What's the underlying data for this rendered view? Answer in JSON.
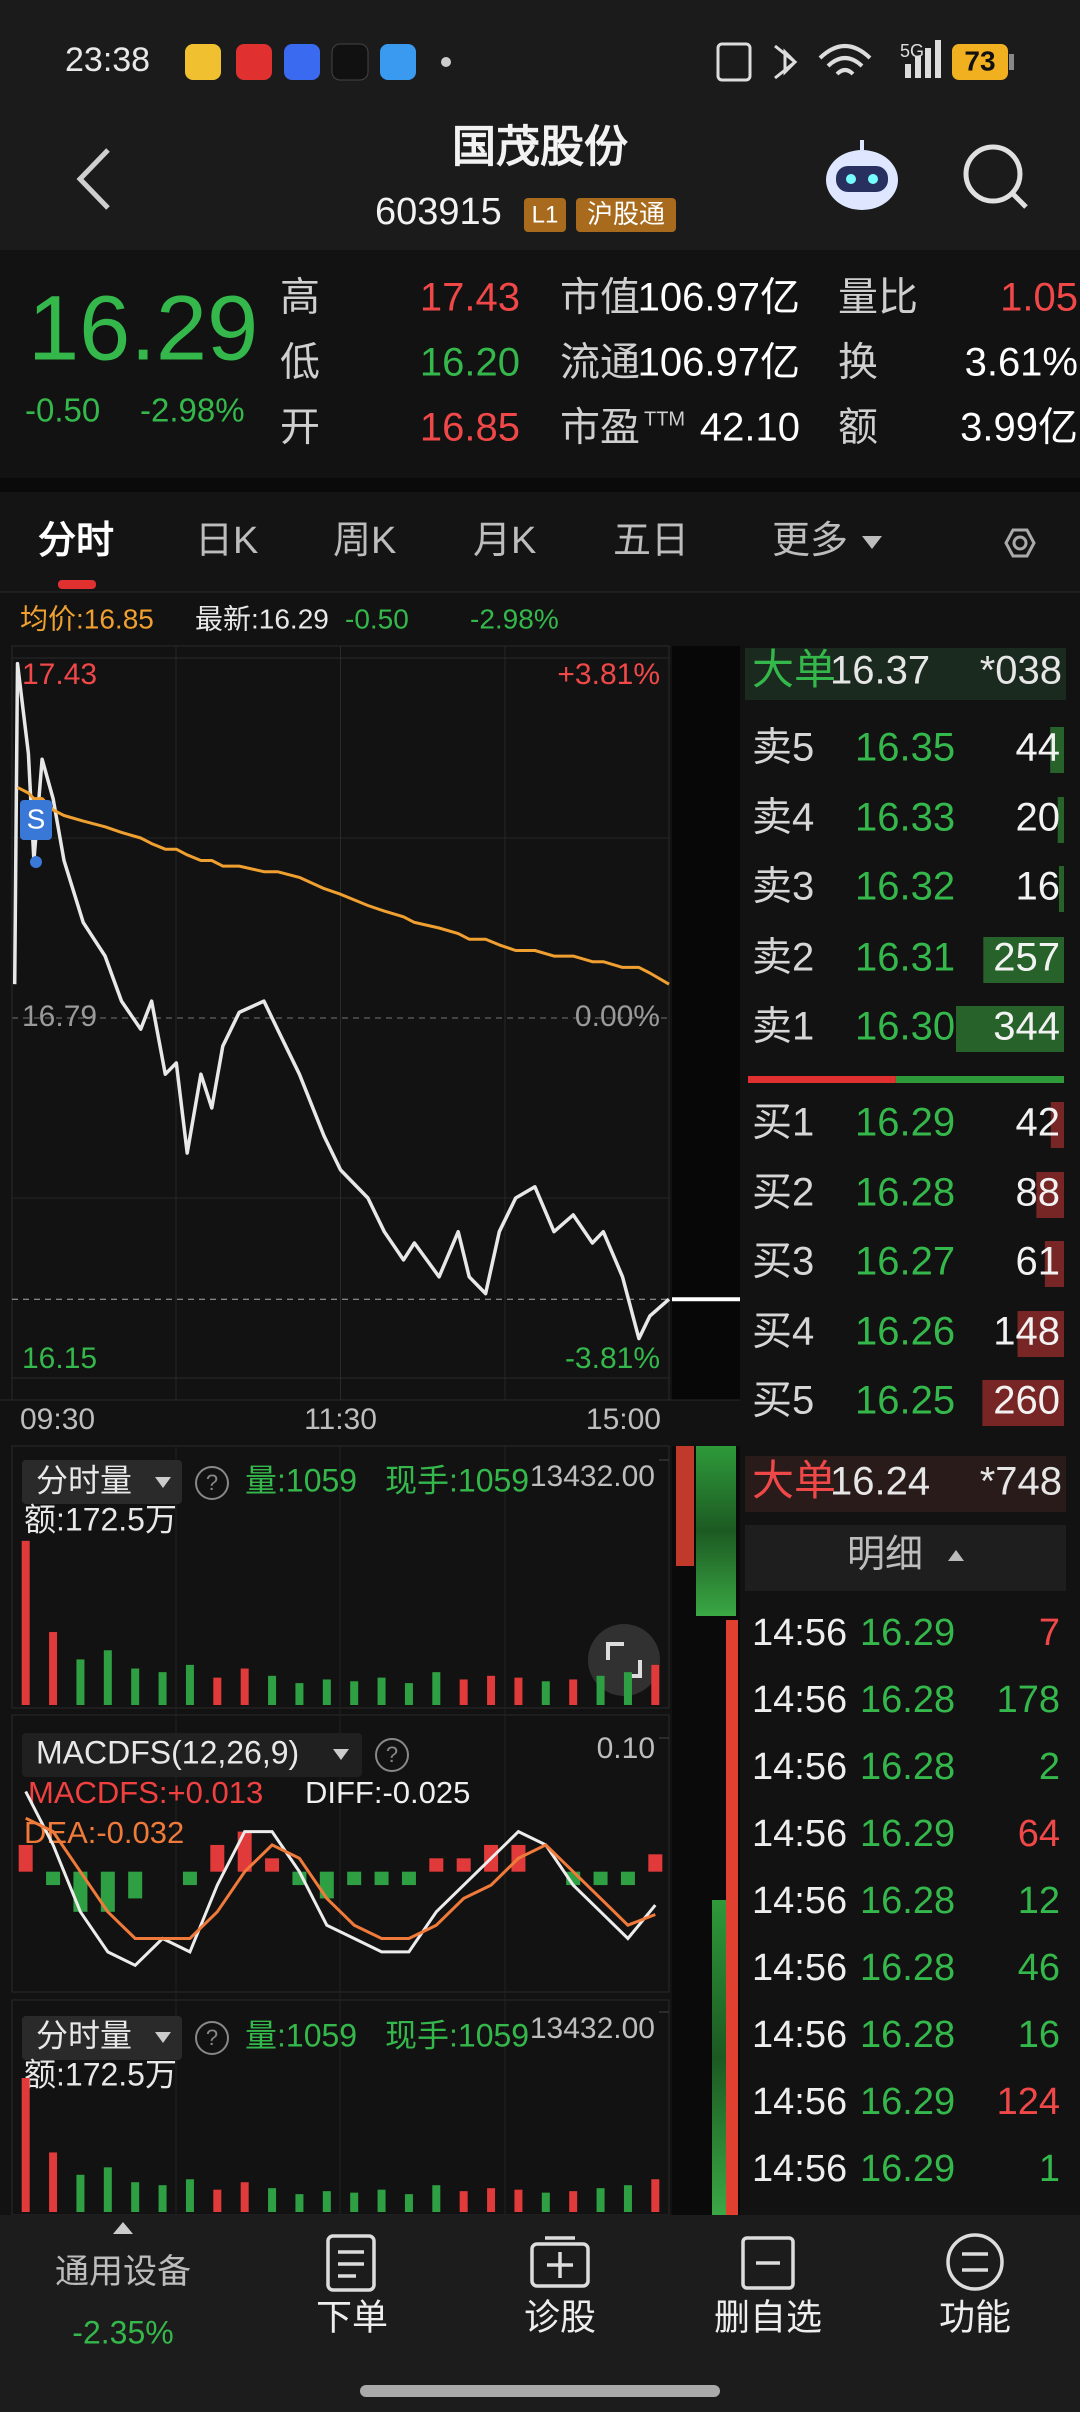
{
  "status_bar": {
    "time": "23:38",
    "network": "5G",
    "battery": "73"
  },
  "header": {
    "title": "国茂股份",
    "code": "603915",
    "badges": [
      "L1",
      "沪股通"
    ]
  },
  "quote": {
    "price": "16.29",
    "change": "-0.50",
    "change_pct": "-2.98%",
    "rows": [
      [
        {
          "label": "高",
          "value": "17.43",
          "color": "#f04848"
        },
        {
          "label": "市值",
          "value": "106.97亿",
          "color": "#ffffff"
        },
        {
          "label": "量比",
          "value": "1.05",
          "color": "#f04848"
        }
      ],
      [
        {
          "label": "低",
          "value": "16.20",
          "color": "#35b84b"
        },
        {
          "label": "流通",
          "value": "106.97亿",
          "color": "#ffffff"
        },
        {
          "label": "换",
          "value": "3.61%",
          "color": "#ffffff"
        }
      ],
      [
        {
          "label": "开",
          "value": "16.85",
          "color": "#f04848"
        },
        {
          "label": "市盈",
          "label_sup": "TTM",
          "value": "42.10",
          "color": "#ffffff"
        },
        {
          "label": "额",
          "value": "3.99亿",
          "color": "#ffffff"
        }
      ]
    ]
  },
  "tabs": [
    "分时",
    "日K",
    "周K",
    "月K",
    "五日",
    "更多"
  ],
  "chart_info": {
    "avg": "均价:16.85",
    "latest": "最新:16.29",
    "change": "-0.50",
    "change_pct": "-2.98%",
    "marker": "S"
  },
  "chart_data": [
    {
      "type": "line",
      "x": [
        1,
        2,
        6,
        8,
        11,
        15,
        19,
        26,
        34,
        40,
        47,
        51,
        56,
        60,
        64,
        69,
        73,
        77,
        83,
        92,
        97,
        105,
        114,
        120,
        130,
        136,
        143,
        147,
        156,
        163,
        167,
        173,
        178,
        184,
        191,
        198,
        205,
        212,
        216,
        223,
        229,
        233,
        240
      ],
      "series": [
        {
          "color": "#e8e8e8",
          "values": [
            16.85,
            17.42,
            17.26,
            17.07,
            17.25,
            17.18,
            17.07,
            16.96,
            16.9,
            16.82,
            16.77,
            16.82,
            16.69,
            16.71,
            16.55,
            16.69,
            16.63,
            16.74,
            16.8,
            16.82,
            16.77,
            16.69,
            16.58,
            16.52,
            16.47,
            16.41,
            16.36,
            16.39,
            16.33,
            16.41,
            16.33,
            16.3,
            16.41,
            16.47,
            16.49,
            16.41,
            16.44,
            16.39,
            16.41,
            16.33,
            16.22,
            16.26,
            16.29
          ]
        },
        {
          "color": "#f0a030",
          "values": [
            null,
            17.2,
            17.19,
            17.18,
            17.18,
            17.16,
            17.15,
            17.14,
            17.13,
            17.12,
            17.11,
            17.1,
            17.09,
            17.09,
            17.08,
            17.07,
            17.07,
            17.06,
            17.06,
            17.05,
            17.05,
            17.04,
            17.02,
            17.01,
            16.99,
            16.98,
            16.97,
            16.96,
            16.95,
            16.94,
            16.93,
            16.93,
            16.92,
            16.91,
            16.91,
            16.9,
            16.9,
            16.89,
            16.89,
            16.88,
            16.88,
            16.87,
            16.85
          ]
        }
      ],
      "xlim": [
        0,
        240
      ],
      "xticks": [
        {
          "value": 0,
          "label": "09:30"
        },
        {
          "value": 120,
          "label": "11:30"
        },
        {
          "value": 240,
          "label": "15:00"
        }
      ],
      "ylim": [
        16.15,
        17.43
      ],
      "yticks": [
        17.43,
        16.79,
        16.15
      ],
      "y2lim": [
        -3.81,
        3.81
      ],
      "y2ticks": [
        {
          "value": 3.81,
          "label": "+3.81%"
        },
        {
          "value": 0,
          "label": "0.00%"
        },
        {
          "value": -3.81,
          "label": "-3.81%"
        }
      ]
    },
    {
      "type": "bar",
      "x": [
        5,
        15,
        25,
        35,
        45,
        55,
        65,
        75,
        85,
        95,
        105,
        115,
        125,
        135,
        145,
        155,
        165,
        175,
        185,
        195,
        205,
        215,
        225,
        235
      ],
      "values": [
        9000,
        4000,
        2500,
        3000,
        2000,
        1800,
        2200,
        1500,
        2000,
        1600,
        1200,
        1400,
        1300,
        1500,
        1200,
        1800,
        1400,
        1600,
        1500,
        1300,
        1400,
        1600,
        1800,
        2200
      ],
      "xlim": [
        0,
        240
      ],
      "ylim": [
        0,
        13432
      ],
      "yticks": [
        {
          "value": 13432,
          "label": "13432.00"
        }
      ],
      "up_color": "#e03a3a",
      "down_color": "#2ea043",
      "selector": "分时量",
      "help": "?",
      "volume": "量:1059",
      "last": "现手:1059",
      "amount": "额:172.5万"
    },
    {
      "type": "macd",
      "x": [
        5,
        15,
        25,
        35,
        45,
        55,
        65,
        75,
        85,
        95,
        105,
        115,
        125,
        135,
        145,
        155,
        165,
        175,
        185,
        195,
        205,
        215,
        225,
        235
      ],
      "bars": [
        0.02,
        -0.01,
        -0.03,
        -0.03,
        -0.02,
        0,
        -0.01,
        0.02,
        0.03,
        0.01,
        -0.01,
        -0.02,
        -0.01,
        -0.01,
        -0.01,
        0.01,
        0.01,
        0.02,
        0.02,
        0,
        -0.01,
        -0.01,
        -0.01,
        0.013
      ],
      "up_color": "#e03a3a",
      "down_color": "#2ea043",
      "series": [
        {
          "color": "#ececec",
          "values": [
            0.06,
            0.02,
            -0.03,
            -0.06,
            -0.07,
            -0.05,
            -0.06,
            -0.01,
            0.03,
            0.03,
            0.0,
            -0.04,
            -0.05,
            -0.06,
            -0.06,
            -0.03,
            -0.01,
            0.01,
            0.03,
            0.02,
            -0.01,
            -0.03,
            -0.05,
            -0.025
          ]
        },
        {
          "color": "#f07a3a",
          "values": [
            0.04,
            0.03,
            0.0,
            -0.03,
            -0.05,
            -0.05,
            -0.05,
            -0.03,
            0.0,
            0.02,
            0.01,
            -0.02,
            -0.04,
            -0.05,
            -0.05,
            -0.04,
            -0.02,
            -0.01,
            0.01,
            0.02,
            0.0,
            -0.02,
            -0.04,
            -0.032
          ]
        }
      ],
      "xlim": [
        0,
        240
      ],
      "ylim": [
        -0.09,
        0.1
      ],
      "yticks": [
        {
          "value": 0.1,
          "label": "0.10"
        }
      ],
      "selector": "MACDFS(12,26,9)",
      "help": "?",
      "macd": "MACDFS:+0.013",
      "diff": "DIFF:-0.025",
      "dea": "DEA:-0.032"
    }
  ],
  "order_book": {
    "big_top": {
      "label": "大单",
      "price": "16.37",
      "volume": "*038"
    },
    "asks": [
      {
        "label": "卖5",
        "price": "16.35",
        "volume": 44
      },
      {
        "label": "卖4",
        "price": "16.33",
        "volume": 20
      },
      {
        "label": "卖3",
        "price": "16.32",
        "volume": 16
      },
      {
        "label": "卖2",
        "price": "16.31",
        "volume": 257
      },
      {
        "label": "卖1",
        "price": "16.30",
        "volume": 344
      }
    ],
    "bids": [
      {
        "label": "买1",
        "price": "16.29",
        "volume": 42
      },
      {
        "label": "买2",
        "price": "16.28",
        "volume": 88
      },
      {
        "label": "买3",
        "price": "16.27",
        "volume": 61
      },
      {
        "label": "买4",
        "price": "16.26",
        "volume": 148
      },
      {
        "label": "买5",
        "price": "16.25",
        "volume": 260
      }
    ],
    "big_bottom": {
      "label": "大单",
      "price": "16.24",
      "volume": "*748"
    }
  },
  "details": {
    "title": "明细",
    "rows": [
      {
        "time": "14:56",
        "price": "16.29",
        "volume": 7,
        "color": "#f04848"
      },
      {
        "time": "14:56",
        "price": "16.28",
        "volume": 178,
        "color": "#35b84b"
      },
      {
        "time": "14:56",
        "price": "16.28",
        "volume": 2,
        "color": "#35b84b"
      },
      {
        "time": "14:56",
        "price": "16.29",
        "volume": 64,
        "color": "#f04848"
      },
      {
        "time": "14:56",
        "price": "16.28",
        "volume": 12,
        "color": "#35b84b"
      },
      {
        "time": "14:56",
        "price": "16.28",
        "volume": 46,
        "color": "#35b84b"
      },
      {
        "time": "14:56",
        "price": "16.28",
        "volume": 16,
        "color": "#35b84b"
      },
      {
        "time": "14:56",
        "price": "16.29",
        "volume": 124,
        "color": "#f04848"
      },
      {
        "time": "14:56",
        "price": "16.29",
        "volume": 1,
        "color": "#35b84b"
      }
    ]
  },
  "bottom_nav": {
    "sector": {
      "name": "通用设备",
      "change": "-2.35%"
    },
    "items": [
      "下单",
      "诊股",
      "删自选",
      "功能"
    ]
  }
}
